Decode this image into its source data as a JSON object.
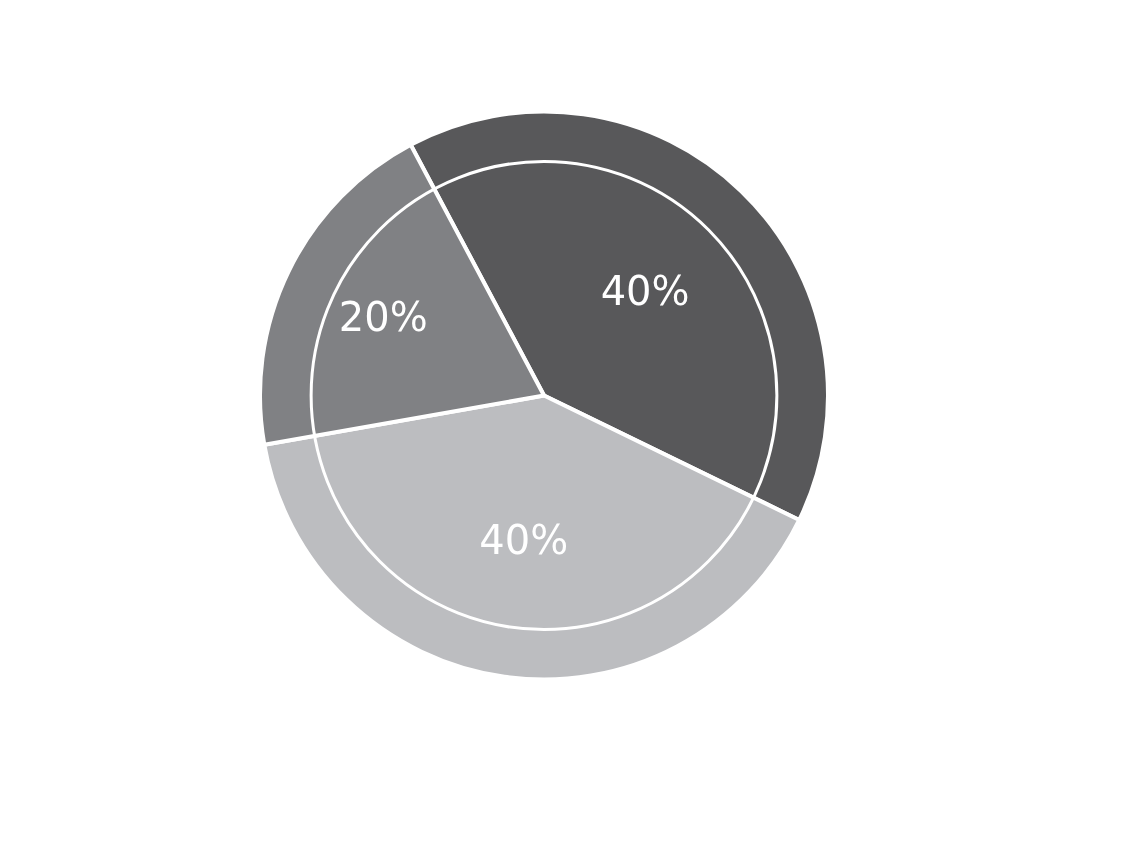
{
  "chart_data": {
    "type": "pie",
    "categories": [
      null,
      null,
      null
    ],
    "values": [
      40,
      40,
      20
    ],
    "value_labels": [
      "40%",
      "40%",
      "20%"
    ],
    "colors": [
      "#58585a",
      "#bcbdc0",
      "#808184"
    ],
    "legend": false
  }
}
